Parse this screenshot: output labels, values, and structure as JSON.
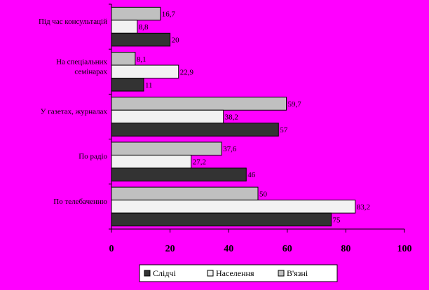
{
  "chart_data": {
    "type": "bar",
    "orientation": "horizontal",
    "categories": [
      "Під час консультацій",
      "На спеціальних семінарах",
      "У газетах, журналах",
      "По радіо",
      "По телебаченню"
    ],
    "category_lines": [
      [
        "Під час консультацій"
      ],
      [
        "На спеціальних",
        "семінарах"
      ],
      [
        "У газетах, журналах"
      ],
      [
        "По радіо"
      ],
      [
        "По телебаченню"
      ]
    ],
    "series": [
      {
        "name": "В'язні",
        "values": [
          16.7,
          8.1,
          59.7,
          37.6,
          50
        ],
        "labels": [
          "16,7",
          "8,1",
          "59,7",
          "37,6",
          "50"
        ]
      },
      {
        "name": "Населення",
        "values": [
          8.8,
          22.9,
          38.2,
          27.2,
          83.2
        ],
        "labels": [
          "8,8",
          "22,9",
          "38,2",
          "27,2",
          "83,2"
        ]
      },
      {
        "name": "Слідчі",
        "values": [
          20,
          11,
          57,
          46,
          75
        ],
        "labels": [
          "20",
          "11",
          "57",
          "46",
          "75"
        ]
      }
    ],
    "xlim": [
      0,
      100
    ],
    "xticks": [
      "0",
      "20",
      "40",
      "60",
      "80",
      "100"
    ],
    "grid": false,
    "legend_order": [
      "Слідчі",
      "Населення",
      "В'язні"
    ],
    "legend_position": "bottom"
  },
  "colors": {
    "background": "#ff00ff",
    "series": {
      "В'язні": "#c0c0c0",
      "Населення": "#f2f2f2",
      "Слідчі": "#333333"
    },
    "border": "#000000"
  }
}
